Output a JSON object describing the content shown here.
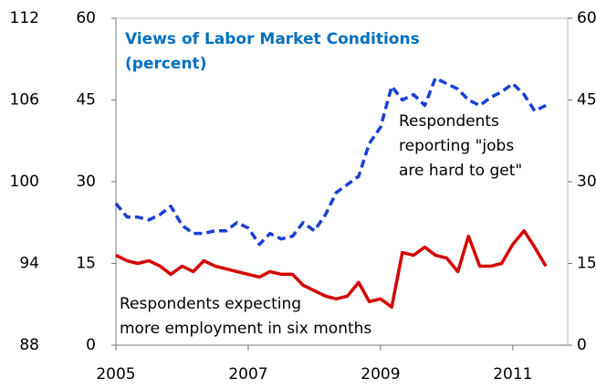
{
  "chart_data": {
    "type": "line",
    "title": [
      "Views of Labor Market Conditions",
      "(percent)"
    ],
    "x": [
      2005,
      2005.17,
      2005.33,
      2005.5,
      2005.67,
      2005.83,
      2006,
      2006.17,
      2006.33,
      2006.5,
      2006.67,
      2006.83,
      2007,
      2007.17,
      2007.33,
      2007.5,
      2007.67,
      2007.83,
      2008,
      2008.17,
      2008.33,
      2008.5,
      2008.67,
      2008.83,
      2009,
      2009.17,
      2009.33,
      2009.5,
      2009.67,
      2009.83,
      2010,
      2010.17,
      2010.33,
      2010.5,
      2010.67,
      2010.83,
      2011,
      2011.17,
      2011.33,
      2011.5
    ],
    "series": [
      {
        "label": [
          "Respondents",
          "reporting \"jobs",
          "are hard to get\""
        ],
        "color": "#1a3fd6",
        "dashed": true,
        "values": [
          26,
          23.5,
          23.5,
          23,
          24,
          25.5,
          22,
          20.5,
          20.5,
          21,
          21,
          22.5,
          21.5,
          18.5,
          20.5,
          19.5,
          20,
          22.5,
          21,
          24,
          28,
          29.5,
          31,
          37,
          40,
          47.5,
          45,
          46,
          44,
          49,
          48,
          47,
          45,
          44,
          45.5,
          46.5,
          48,
          46,
          43,
          44
        ]
      },
      {
        "label": [
          "Respondents expecting",
          "more employment in six  months"
        ],
        "color": "#d40000",
        "dashed": false,
        "values": [
          16.5,
          15.5,
          15,
          15.5,
          14.5,
          13,
          14.5,
          13.5,
          15.5,
          14.5,
          14,
          13.5,
          13,
          12.5,
          13.5,
          13,
          13,
          11,
          10,
          9,
          8.5,
          9,
          11.5,
          8,
          8.5,
          7,
          17,
          16.5,
          18,
          16.5,
          16,
          13.5,
          20,
          14.5,
          14.5,
          15,
          18.5,
          21,
          18,
          14.5
        ]
      }
    ],
    "xlim": [
      2005,
      2011.83
    ],
    "xticks": [
      2005,
      2007,
      2009,
      2011
    ],
    "ylim": [
      0,
      60
    ],
    "yticks": [
      0,
      15,
      30,
      45,
      60
    ],
    "y2lim": [
      0,
      60
    ],
    "y2ticks": [
      0,
      15,
      30,
      45,
      60
    ],
    "outer_ylim": [
      88,
      112
    ],
    "outer_yticks": [
      88,
      94,
      100,
      106,
      112
    ]
  }
}
